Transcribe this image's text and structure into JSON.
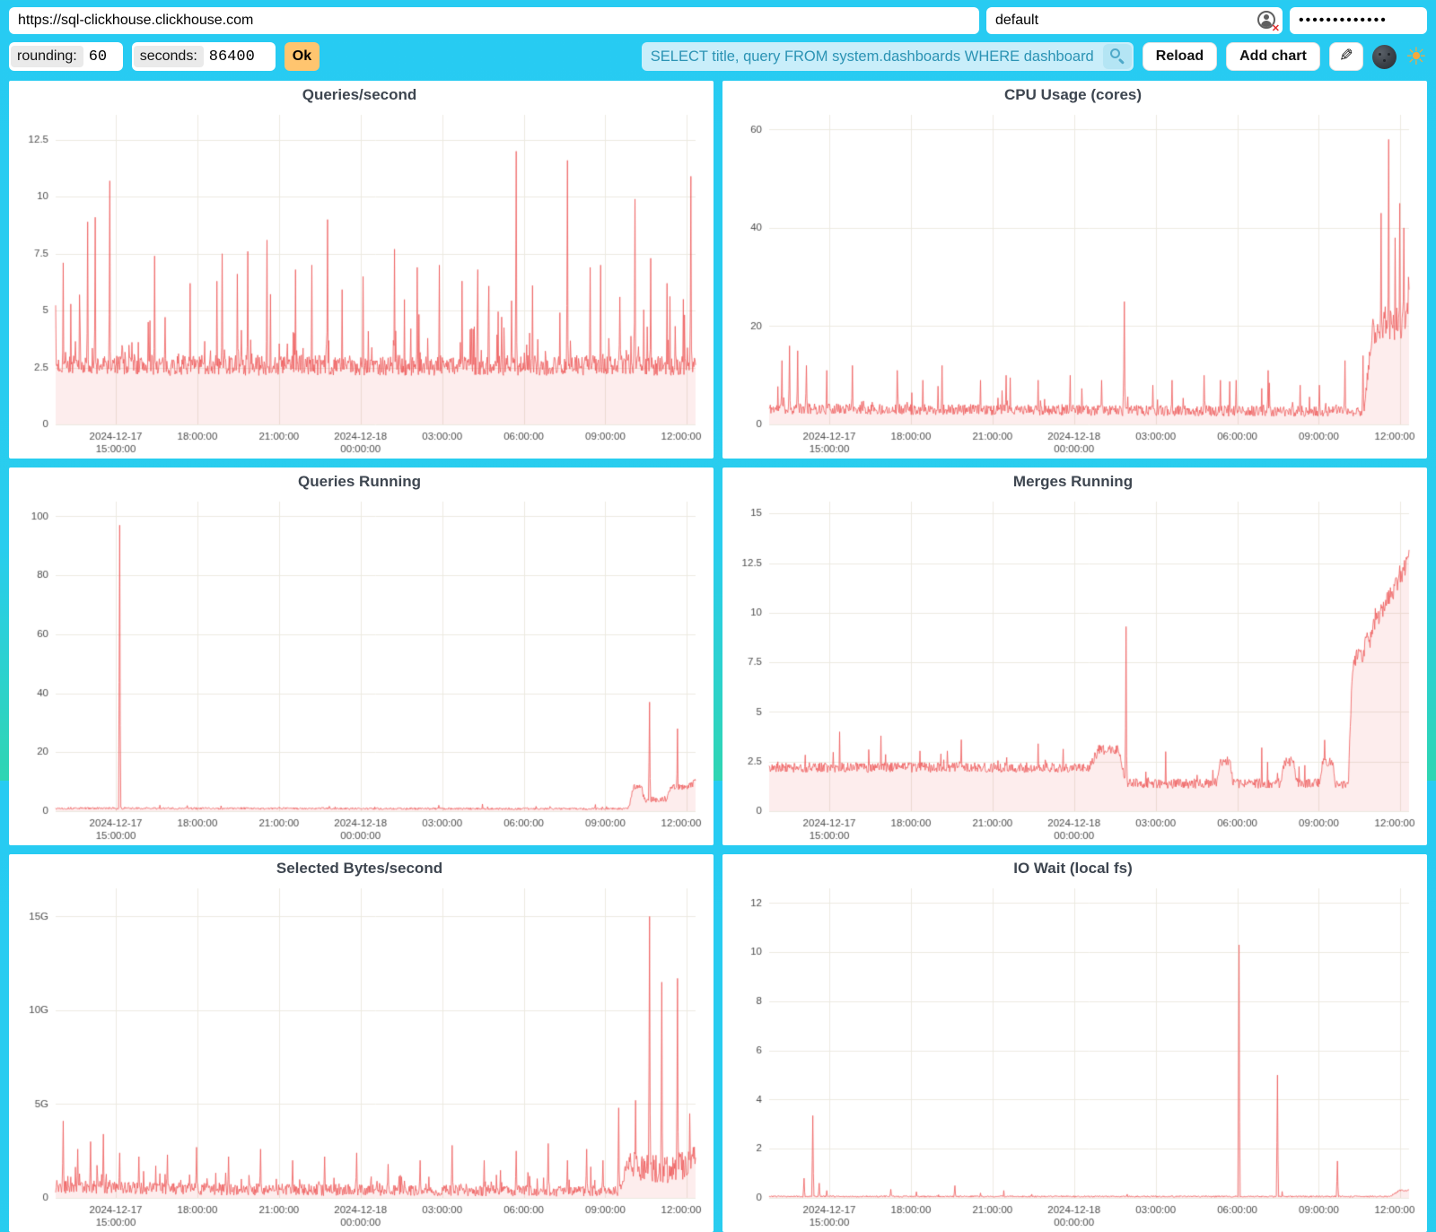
{
  "topbar": {
    "url": "https://sql-clickhouse.clickhouse.com",
    "user": "default",
    "password_mask": "•••••••••••••"
  },
  "controls": {
    "rounding_label": "rounding:",
    "rounding_value": "60",
    "seconds_label": "seconds:",
    "seconds_value": "86400",
    "ok": "Ok",
    "query": "SELECT title, query FROM system.dashboards WHERE dashboard = '",
    "reload": "Reload",
    "add_chart": "Add chart"
  },
  "icons": {
    "pencil": "✎",
    "sun": "☀",
    "user_x": "✕",
    "magnifier": "magnifier-icon",
    "moon": "moon-face-icon"
  },
  "colors": {
    "background_top": "#27CBF2",
    "background_bottom": "#2FD5B2",
    "line": "#EE5A5A",
    "fill": "rgba(242,109,109,0.12)",
    "grid": "#ECEAE0",
    "tick_text": "#4C4C4C",
    "title_text": "#3E4650",
    "ok_button": "#FFC56F",
    "query_bg": "#C9EEFA",
    "query_text": "#2B93B4"
  },
  "x_axis": {
    "ticks": [
      {
        "f": 0.094,
        "l1": "2024-12-17",
        "l2": "15:00:00"
      },
      {
        "f": 0.2215,
        "l1": "18:00:00"
      },
      {
        "f": 0.349,
        "l1": "21:00:00"
      },
      {
        "f": 0.4765,
        "l1": "2024-12-18",
        "l2": "00:00:00"
      },
      {
        "f": 0.604,
        "l1": "03:00:00"
      },
      {
        "f": 0.7315,
        "l1": "06:00:00"
      },
      {
        "f": 0.859,
        "l1": "09:00:00"
      },
      {
        "f": 0.9865,
        "l1": "12:00:00"
      }
    ]
  },
  "chart_data": [
    {
      "type": "line",
      "title": "Queries/second",
      "ylim": [
        0,
        13.6
      ],
      "ymax": 13.6,
      "seed": 7,
      "yticks": [
        {
          "v": 0,
          "label": "0"
        },
        {
          "v": 2.5,
          "label": "2.5"
        },
        {
          "v": 5,
          "label": "5"
        },
        {
          "v": 7.5,
          "label": "7.5"
        },
        {
          "v": 10,
          "label": "10"
        },
        {
          "v": 12.5,
          "label": "12.5"
        }
      ],
      "base": [
        [
          0,
          2.6
        ],
        [
          1,
          2.6
        ]
      ],
      "noise": [
        [
          0,
          0.45
        ]
      ],
      "spike_prob": 0.1,
      "spike_amp": 4.5,
      "events": [
        [
          0.012,
          7.1
        ],
        [
          0.05,
          8.9
        ],
        [
          0.062,
          9.1
        ],
        [
          0.085,
          10.7
        ],
        [
          0.155,
          7.4
        ],
        [
          0.21,
          6.2
        ],
        [
          0.26,
          7.5
        ],
        [
          0.3,
          7.6
        ],
        [
          0.33,
          8.1
        ],
        [
          0.375,
          6.8
        ],
        [
          0.4,
          7.0
        ],
        [
          0.425,
          9.0
        ],
        [
          0.48,
          6.5
        ],
        [
          0.53,
          7.7
        ],
        [
          0.565,
          6.9
        ],
        [
          0.6,
          7.0
        ],
        [
          0.635,
          6.3
        ],
        [
          0.66,
          6.8
        ],
        [
          0.72,
          12.0
        ],
        [
          0.745,
          6.1
        ],
        [
          0.8,
          11.6
        ],
        [
          0.835,
          6.9
        ],
        [
          0.852,
          7.0
        ],
        [
          0.882,
          5.6
        ],
        [
          0.905,
          9.9
        ],
        [
          0.93,
          7.3
        ],
        [
          0.955,
          6.2
        ],
        [
          0.993,
          10.9
        ]
      ]
    },
    {
      "type": "line",
      "title": "CPU Usage (cores)",
      "ylim": [
        0,
        63
      ],
      "ymax": 63,
      "seed": 11,
      "yticks": [
        {
          "v": 0,
          "label": "0"
        },
        {
          "v": 20,
          "label": "20"
        },
        {
          "v": 40,
          "label": "40"
        },
        {
          "v": 60,
          "label": "60"
        }
      ],
      "base": [
        [
          0,
          3.2
        ],
        [
          0.93,
          2.6
        ],
        [
          0.942,
          19
        ],
        [
          0.965,
          21
        ],
        [
          0.985,
          20
        ],
        [
          1,
          24
        ]
      ],
      "noise": [
        [
          0,
          1.1
        ],
        [
          0.93,
          1.1
        ],
        [
          0.945,
          3.5
        ],
        [
          1,
          4.0
        ]
      ],
      "spike_prob": 0.07,
      "spike_amp": 7,
      "events": [
        [
          0.02,
          13
        ],
        [
          0.032,
          16
        ],
        [
          0.045,
          15
        ],
        [
          0.058,
          12
        ],
        [
          0.09,
          11
        ],
        [
          0.13,
          12
        ],
        [
          0.2,
          11
        ],
        [
          0.24,
          9
        ],
        [
          0.27,
          12
        ],
        [
          0.33,
          9
        ],
        [
          0.37,
          10
        ],
        [
          0.42,
          9
        ],
        [
          0.47,
          10
        ],
        [
          0.52,
          9
        ],
        [
          0.555,
          25
        ],
        [
          0.6,
          8
        ],
        [
          0.63,
          9
        ],
        [
          0.68,
          10
        ],
        [
          0.705,
          9
        ],
        [
          0.73,
          9
        ],
        [
          0.78,
          11
        ],
        [
          0.83,
          8
        ],
        [
          0.86,
          8
        ],
        [
          0.9,
          13
        ],
        [
          0.928,
          14
        ],
        [
          0.956,
          43
        ],
        [
          0.968,
          58
        ],
        [
          0.978,
          38
        ],
        [
          0.9855,
          45
        ],
        [
          0.992,
          40
        ],
        [
          0.999,
          30
        ]
      ]
    },
    {
      "type": "line",
      "title": "Queries Running",
      "ylim": [
        0,
        105
      ],
      "ymax": 105,
      "seed": 13,
      "yticks": [
        {
          "v": 0,
          "label": "0"
        },
        {
          "v": 20,
          "label": "20"
        },
        {
          "v": 40,
          "label": "40"
        },
        {
          "v": 60,
          "label": "60"
        },
        {
          "v": 80,
          "label": "80"
        },
        {
          "v": 100,
          "label": "100"
        }
      ],
      "base": [
        [
          0,
          1.0
        ],
        [
          0.895,
          0.8
        ],
        [
          0.903,
          8.0
        ],
        [
          0.915,
          8.5
        ],
        [
          0.92,
          4.0
        ],
        [
          0.955,
          4.0
        ],
        [
          0.962,
          8.0
        ],
        [
          0.99,
          8.5
        ],
        [
          1,
          10.0
        ]
      ],
      "noise": [
        [
          0,
          0.35
        ],
        [
          0.89,
          0.35
        ],
        [
          0.903,
          1.1
        ],
        [
          1,
          1.1
        ]
      ],
      "spike_prob": 0.015,
      "spike_amp": 1.6,
      "events": [
        [
          0.1,
          97
        ],
        [
          0.928,
          37
        ],
        [
          0.972,
          28
        ]
      ]
    },
    {
      "type": "line",
      "title": "Merges Running",
      "ylim": [
        0,
        15.6
      ],
      "ymax": 15.6,
      "seed": 17,
      "yticks": [
        {
          "v": 0,
          "label": "0"
        },
        {
          "v": 2.5,
          "label": "2.5"
        },
        {
          "v": 5,
          "label": "5"
        },
        {
          "v": 7.5,
          "label": "7.5"
        },
        {
          "v": 10,
          "label": "10"
        },
        {
          "v": 12.5,
          "label": "12.5"
        },
        {
          "v": 15,
          "label": "15"
        }
      ],
      "base": [
        [
          0,
          2.2
        ],
        [
          0.5,
          2.2
        ],
        [
          0.515,
          3.1
        ],
        [
          0.545,
          3.1
        ],
        [
          0.552,
          2.2
        ],
        [
          0.56,
          1.4
        ],
        [
          0.7,
          1.4
        ],
        [
          0.705,
          2.5
        ],
        [
          0.72,
          2.5
        ],
        [
          0.725,
          1.4
        ],
        [
          0.8,
          1.4
        ],
        [
          0.805,
          2.5
        ],
        [
          0.82,
          2.5
        ],
        [
          0.825,
          1.4
        ],
        [
          0.86,
          1.4
        ],
        [
          0.865,
          2.5
        ],
        [
          0.88,
          2.5
        ],
        [
          0.885,
          1.4
        ],
        [
          0.905,
          1.4
        ],
        [
          0.912,
          7.6
        ],
        [
          0.928,
          8.0
        ],
        [
          0.942,
          9.0
        ],
        [
          0.96,
          10.2
        ],
        [
          0.98,
          11.5
        ],
        [
          1,
          12.8
        ]
      ],
      "noise": [
        [
          0,
          0.25
        ],
        [
          0.905,
          0.25
        ],
        [
          0.915,
          0.55
        ],
        [
          1,
          0.55
        ]
      ],
      "spike_prob": 0.05,
      "spike_amp": 1.3,
      "events": [
        [
          0.11,
          4.0
        ],
        [
          0.175,
          3.8
        ],
        [
          0.3,
          3.6
        ],
        [
          0.42,
          3.4
        ],
        [
          0.558,
          9.3
        ],
        [
          0.62,
          3.0
        ],
        [
          0.77,
          3.2
        ]
      ]
    },
    {
      "type": "line",
      "title": "Selected Bytes/second",
      "ylim": [
        0,
        16.5
      ],
      "ymax": 16.5,
      "seed": 19,
      "y_unit": "G",
      "yticks": [
        {
          "v": 0,
          "label": "0"
        },
        {
          "v": 5,
          "label": "5G"
        },
        {
          "v": 10,
          "label": "10G"
        },
        {
          "v": 15,
          "label": "15G"
        }
      ],
      "base": [
        [
          0,
          0.6
        ],
        [
          0.3,
          0.45
        ],
        [
          0.6,
          0.4
        ],
        [
          0.88,
          0.35
        ],
        [
          0.897,
          1.8
        ],
        [
          0.92,
          1.6
        ],
        [
          0.96,
          1.5
        ],
        [
          0.99,
          1.8
        ],
        [
          1,
          2.2
        ]
      ],
      "noise": [
        [
          0,
          0.35
        ],
        [
          0.88,
          0.28
        ],
        [
          0.9,
          0.7
        ],
        [
          1,
          0.8
        ]
      ],
      "spike_prob": 0.1,
      "spike_amp": 1.7,
      "events": [
        [
          0.012,
          4.1
        ],
        [
          0.035,
          2.6
        ],
        [
          0.055,
          3.0
        ],
        [
          0.075,
          3.4
        ],
        [
          0.1,
          2.4
        ],
        [
          0.13,
          2.2
        ],
        [
          0.175,
          2.3
        ],
        [
          0.22,
          2.7
        ],
        [
          0.27,
          2.2
        ],
        [
          0.32,
          2.6
        ],
        [
          0.37,
          2.0
        ],
        [
          0.42,
          2.2
        ],
        [
          0.47,
          2.4
        ],
        [
          0.52,
          1.8
        ],
        [
          0.57,
          2.0
        ],
        [
          0.62,
          2.8
        ],
        [
          0.67,
          2.0
        ],
        [
          0.72,
          2.5
        ],
        [
          0.77,
          2.9
        ],
        [
          0.8,
          2.0
        ],
        [
          0.83,
          2.6
        ],
        [
          0.855,
          2.0
        ],
        [
          0.88,
          4.8
        ],
        [
          0.906,
          5.2
        ],
        [
          0.928,
          15.0
        ],
        [
          0.947,
          11.5
        ],
        [
          0.972,
          11.7
        ],
        [
          0.991,
          4.5
        ]
      ]
    },
    {
      "type": "line",
      "title": "IO Wait (local fs)",
      "ylim": [
        0,
        12.6
      ],
      "ymax": 12.6,
      "seed": 23,
      "yticks": [
        {
          "v": 0,
          "label": "0"
        },
        {
          "v": 2,
          "label": "2"
        },
        {
          "v": 4,
          "label": "4"
        },
        {
          "v": 6,
          "label": "6"
        },
        {
          "v": 8,
          "label": "8"
        },
        {
          "v": 10,
          "label": "10"
        },
        {
          "v": 12,
          "label": "12"
        }
      ],
      "base": [
        [
          0,
          0.06
        ],
        [
          0.97,
          0.06
        ],
        [
          0.985,
          0.3
        ],
        [
          1,
          0.3
        ]
      ],
      "noise": [
        [
          0,
          0.03
        ]
      ],
      "spike_prob": 0.004,
      "spike_amp": 0.35,
      "events": [
        [
          0.055,
          0.8
        ],
        [
          0.068,
          3.35
        ],
        [
          0.078,
          0.6
        ],
        [
          0.09,
          0.3
        ],
        [
          0.19,
          0.35
        ],
        [
          0.23,
          0.25
        ],
        [
          0.29,
          0.5
        ],
        [
          0.33,
          0.2
        ],
        [
          0.41,
          0.15
        ],
        [
          0.56,
          0.15
        ],
        [
          0.63,
          0.1
        ],
        [
          0.734,
          10.3
        ],
        [
          0.794,
          5.0
        ],
        [
          0.888,
          1.5
        ]
      ]
    }
  ]
}
